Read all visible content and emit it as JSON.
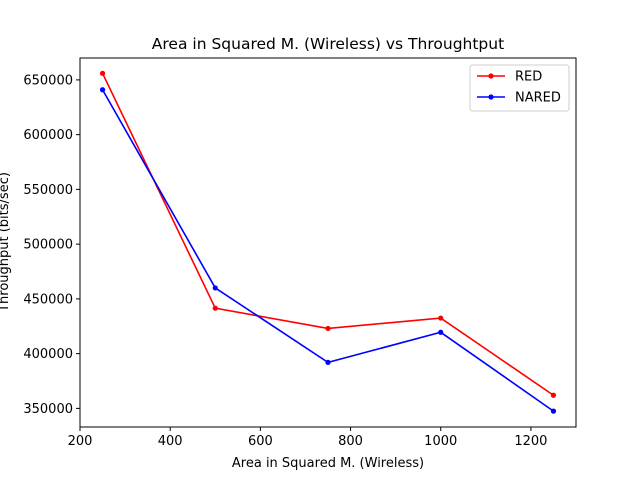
{
  "chart_data": {
    "type": "line",
    "title": "Area in Squared M. (Wireless)  vs Throughtput",
    "xlabel": "Area in Squared M. (Wireless)",
    "ylabel": "Throughput (bits/sec)",
    "x": [
      250,
      500,
      750,
      1000,
      1250
    ],
    "xlim": [
      200,
      1300
    ],
    "ylim": [
      333000,
      670000
    ],
    "x_ticks": [
      200,
      400,
      600,
      800,
      1000,
      1200
    ],
    "y_ticks": [
      350000,
      400000,
      450000,
      500000,
      550000,
      600000,
      650000
    ],
    "grid": false,
    "legend_position": "top-right",
    "series": [
      {
        "name": "RED",
        "color": "#ff0000",
        "values": [
          656000,
          441500,
          423000,
          432500,
          362000
        ]
      },
      {
        "name": "NARED",
        "color": "#0000ff",
        "values": [
          641000,
          460000,
          392000,
          419500,
          347500
        ]
      }
    ]
  }
}
